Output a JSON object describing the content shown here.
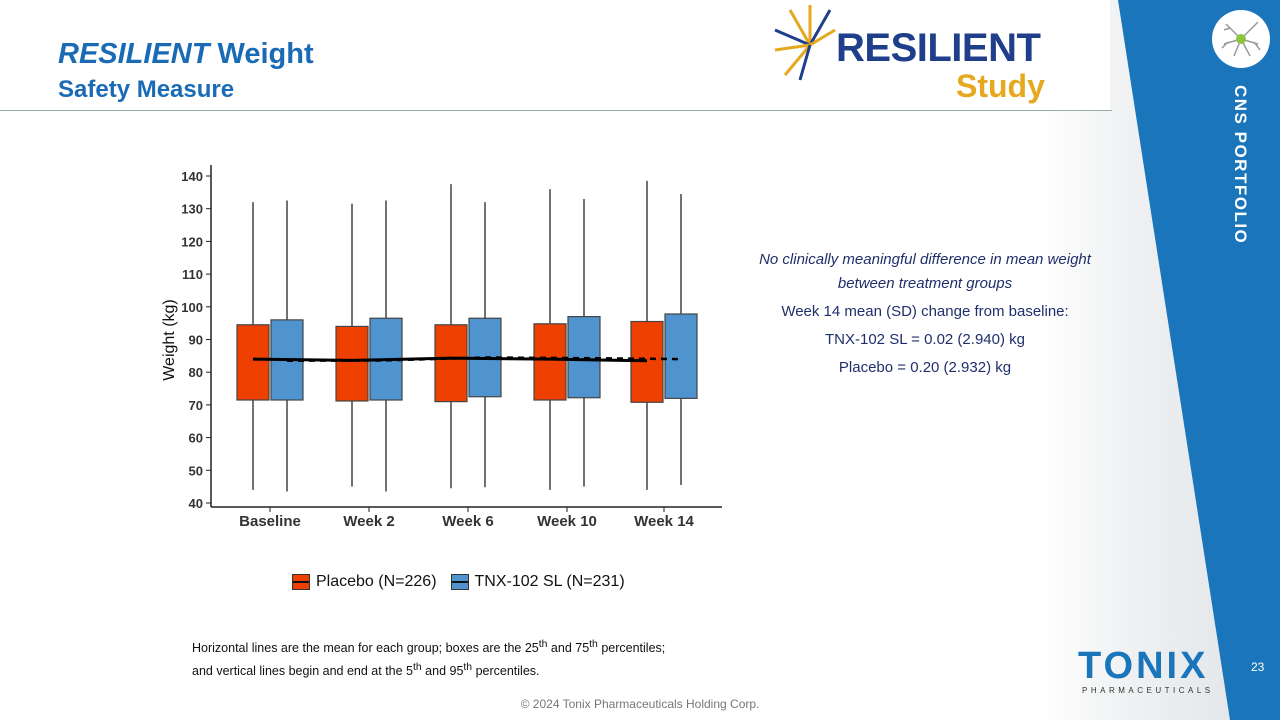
{
  "header": {
    "title_italic": "RESILIENT",
    "title_rest": " Weight",
    "subtitle": "Safety Measure"
  },
  "logo": {
    "word1": "RESILIENT",
    "word2": "Study"
  },
  "side": {
    "label": "CNS PORTFOLIO"
  },
  "notes": {
    "line1": "No clinically meaningful difference in mean weight between treatment groups",
    "line2": "Week 14 mean (SD) change from baseline:",
    "line3": "TNX-102 SL  = 0.02 (2.940) kg",
    "line4": "Placebo =  0.20 (2.932) kg"
  },
  "footnote": {
    "a": "Horizontal lines are the mean for each group; boxes are the 25",
    "sup1": "th",
    "b": " and 75",
    "sup2": "th",
    "c": " percentiles;",
    "d": "and vertical lines begin and end at the 5",
    "sup3": "th",
    "e": " and 95",
    "sup4": "th",
    "f": " percentiles."
  },
  "copyright": "© 2024 Tonix Pharmaceuticals Holding Corp.",
  "page_number": "23",
  "company": {
    "name": "TONIX",
    "sub": "PHARMACEUTICALS"
  },
  "colors": {
    "placebo": "#ee4000",
    "tnx": "#4f94cf",
    "brand": "#1a6bb5"
  },
  "chart_data": {
    "type": "box",
    "ylabel": "Weight (kg)",
    "xlabel": "",
    "ylim": [
      40,
      140
    ],
    "yticks": [
      40,
      50,
      60,
      70,
      80,
      90,
      100,
      110,
      120,
      130,
      140
    ],
    "categories": [
      "Baseline",
      "Week 2",
      "Week 6",
      "Week 10",
      "Week 14"
    ],
    "legend_position": "bottom",
    "series": [
      {
        "name": "Placebo (N=226)",
        "line": "solid",
        "p5": [
          44,
          45,
          44.5,
          44,
          44
        ],
        "q1": [
          71.5,
          71.2,
          71,
          71.5,
          70.8
        ],
        "q3": [
          94.5,
          94,
          94.5,
          94.8,
          95.5
        ],
        "p95": [
          132,
          131.5,
          137.5,
          136,
          138.5
        ],
        "mean": [
          84,
          83.6,
          84.3,
          84,
          83.5
        ]
      },
      {
        "name": "TNX-102 SL (N=231)",
        "line": "dashed",
        "p5": [
          43.5,
          43.5,
          44.8,
          45,
          45.5
        ],
        "q1": [
          71.5,
          71.5,
          72.5,
          72.2,
          72
        ],
        "q3": [
          96,
          96.5,
          96.5,
          97,
          97.8
        ],
        "p95": [
          132.5,
          132.5,
          132,
          133,
          134.5
        ],
        "mean": [
          83.5,
          83.6,
          84.5,
          84.3,
          84
        ]
      }
    ]
  }
}
